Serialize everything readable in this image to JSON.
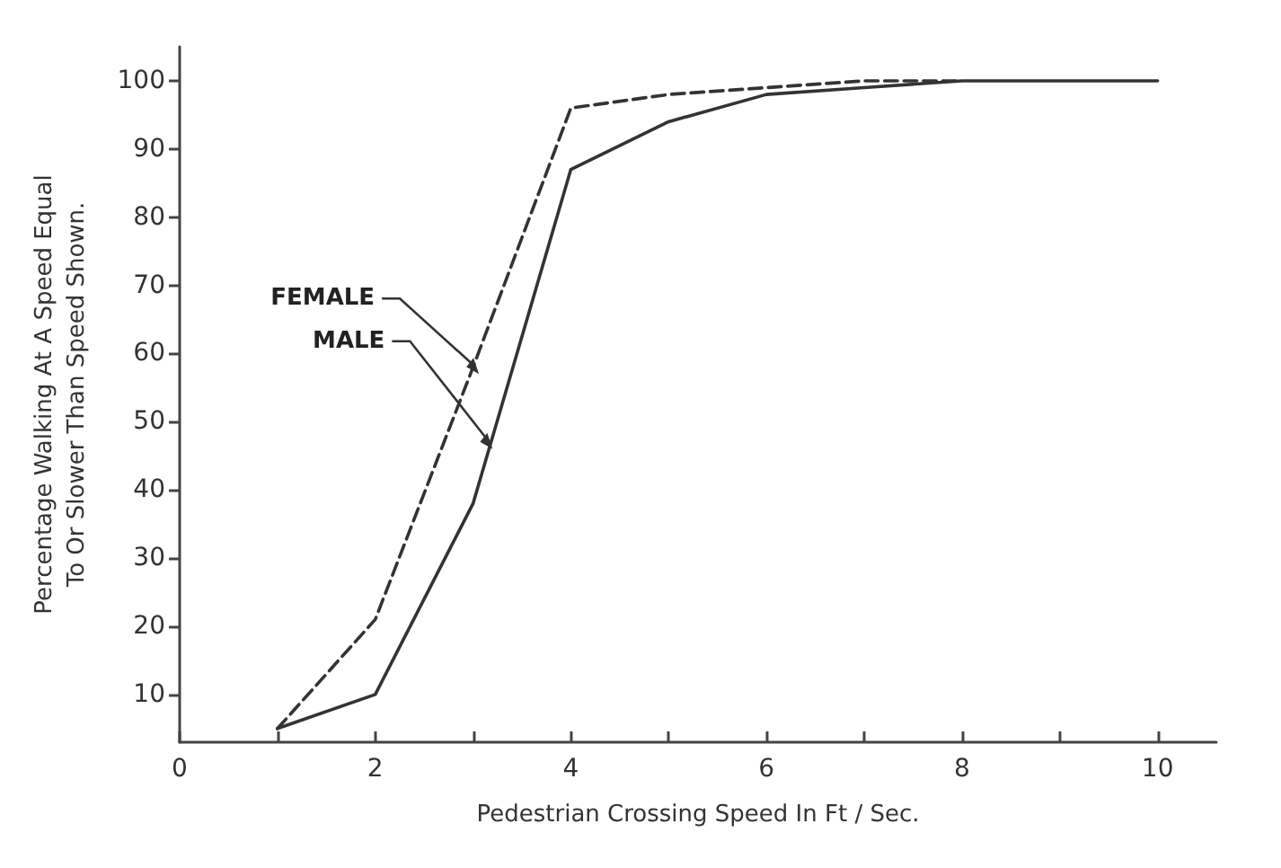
{
  "chart_data": {
    "type": "line",
    "xlabel": "Pedestrian Crossing Speed In Ft / Sec.",
    "ylabel": "Percentage Walking At A Speed Equal\nTo Or Slower Than Speed Shown.",
    "xlim": [
      0,
      10.6
    ],
    "xticks": [
      0,
      {
        "value": 1,
        "label": null
      },
      2,
      {
        "value": 3,
        "label": null
      },
      4,
      {
        "value": 5,
        "label": null
      },
      6,
      {
        "value": 7,
        "label": null
      },
      8,
      {
        "value": 9,
        "label": null
      },
      10
    ],
    "ylim": [
      3,
      105
    ],
    "yticks": [
      10,
      20,
      30,
      40,
      50,
      60,
      70,
      80,
      90,
      100
    ],
    "grid": false,
    "marker": "none",
    "series": [
      {
        "color": "#333333",
        "line_style": "dashed",
        "x": [
          1,
          2,
          3,
          4,
          5,
          6,
          7,
          8
        ],
        "values": [
          5,
          21,
          58,
          96,
          98,
          99,
          100,
          100
        ]
      },
      {
        "color": "#333333",
        "line_style": "solid",
        "x": [
          1,
          2,
          3,
          4,
          5,
          6,
          7,
          8,
          9,
          10
        ],
        "values": [
          5,
          10,
          38,
          87,
          94,
          98,
          99,
          100,
          100,
          100
        ]
      }
    ],
    "annotations": [
      {
        "text": "FEMALE",
        "x": 3.06,
        "y": 57
      },
      {
        "text": "MALE",
        "x": 3.2,
        "y": 46
      }
    ]
  }
}
